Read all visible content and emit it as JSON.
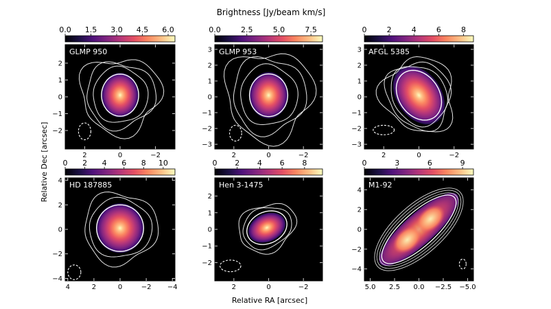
{
  "figure": {
    "colorbar_title": "Brightness [Jy/beam km/s]",
    "xlabel": "Relative RA [arcsec]",
    "ylabel": "Relative Dec [arcsec]"
  },
  "colors": {
    "background": "#000000",
    "contour": "#ffffff",
    "colormap": "magma"
  },
  "chart_data": [
    {
      "type": "heatmap",
      "title": "GLMP 950",
      "colorbar_ticks": [
        "0.0",
        "1.5",
        "3.0",
        "4.5",
        "6.0"
      ],
      "colorbar_range": [
        0,
        6.4
      ],
      "x_ticks": [
        2,
        0,
        -2
      ],
      "y_ticks": [
        -2,
        -1,
        0,
        1,
        2
      ],
      "xlim": [
        3.1,
        -3.1
      ],
      "ylim": [
        -3.1,
        3.1
      ],
      "source_shape": "compact round core",
      "beam": "dashed ellipse bottom-left",
      "contours": 4
    },
    {
      "type": "heatmap",
      "title": "GLMP 953",
      "colorbar_ticks": [
        "0.0",
        "2.5",
        "5.0",
        "7.5"
      ],
      "colorbar_range": [
        0,
        8.4
      ],
      "x_ticks": [
        2,
        0,
        -2
      ],
      "y_ticks": [
        -3,
        -2,
        -1,
        0,
        1,
        2,
        3
      ],
      "xlim": [
        3.1,
        -3.1
      ],
      "ylim": [
        -3.3,
        3.3
      ],
      "source_shape": "compact round core",
      "beam": "dashed ellipse bottom-left",
      "contours": 4
    },
    {
      "type": "heatmap",
      "title": "AFGL 5385",
      "colorbar_ticks": [
        "0",
        "2",
        "4",
        "6",
        "8"
      ],
      "colorbar_range": [
        0,
        8.8
      ],
      "x_ticks": [
        2,
        0,
        -2
      ],
      "y_ticks": [
        -3,
        -2,
        -1,
        0,
        1,
        2,
        3
      ],
      "xlim": [
        3.1,
        -3.1
      ],
      "ylim": [
        -3.3,
        3.3
      ],
      "source_shape": "elongated tilted core",
      "beam": "dashed ellipse bottom-left",
      "contours": 4
    },
    {
      "type": "heatmap",
      "title": "HD 187885",
      "colorbar_ticks": [
        "0",
        "2",
        "4",
        "6",
        "8",
        "10"
      ],
      "colorbar_range": [
        0,
        11.2
      ],
      "x_ticks": [
        4,
        2,
        0,
        -2,
        -4
      ],
      "y_ticks": [
        -4,
        -2,
        0,
        2,
        4
      ],
      "xlim": [
        4.2,
        -4.2
      ],
      "ylim": [
        -4.2,
        4.2
      ],
      "source_shape": "compact round core",
      "beam": "dashed ellipse bottom-left",
      "contours": 3
    },
    {
      "type": "heatmap",
      "title": "Hen 3-1475",
      "colorbar_ticks": [
        "0",
        "2",
        "4",
        "6",
        "8"
      ],
      "colorbar_range": [
        0,
        9.6
      ],
      "x_ticks": [
        2,
        0,
        -2
      ],
      "y_ticks": [
        -2,
        -1,
        0,
        1,
        2
      ],
      "xlim": [
        3.1,
        -3.1
      ],
      "ylim": [
        -3.1,
        3.1
      ],
      "source_shape": "compact elongated core",
      "beam": "dashed ellipse bottom-left",
      "contours": 3
    },
    {
      "type": "heatmap",
      "title": "M1-92",
      "colorbar_ticks": [
        "0",
        "3",
        "6",
        "9"
      ],
      "colorbar_range": [
        0,
        10
      ],
      "x_ticks": [
        "5.0",
        "2.5",
        "0.0",
        "-2.5",
        "-5.0"
      ],
      "y_ticks": [
        -4,
        -2,
        0,
        2,
        4
      ],
      "xlim": [
        5.6,
        -5.6
      ],
      "ylim": [
        -5.2,
        5.2
      ],
      "source_shape": "bipolar elongated lobes",
      "beam": "dashed ellipse bottom-right",
      "contours": 4
    }
  ]
}
